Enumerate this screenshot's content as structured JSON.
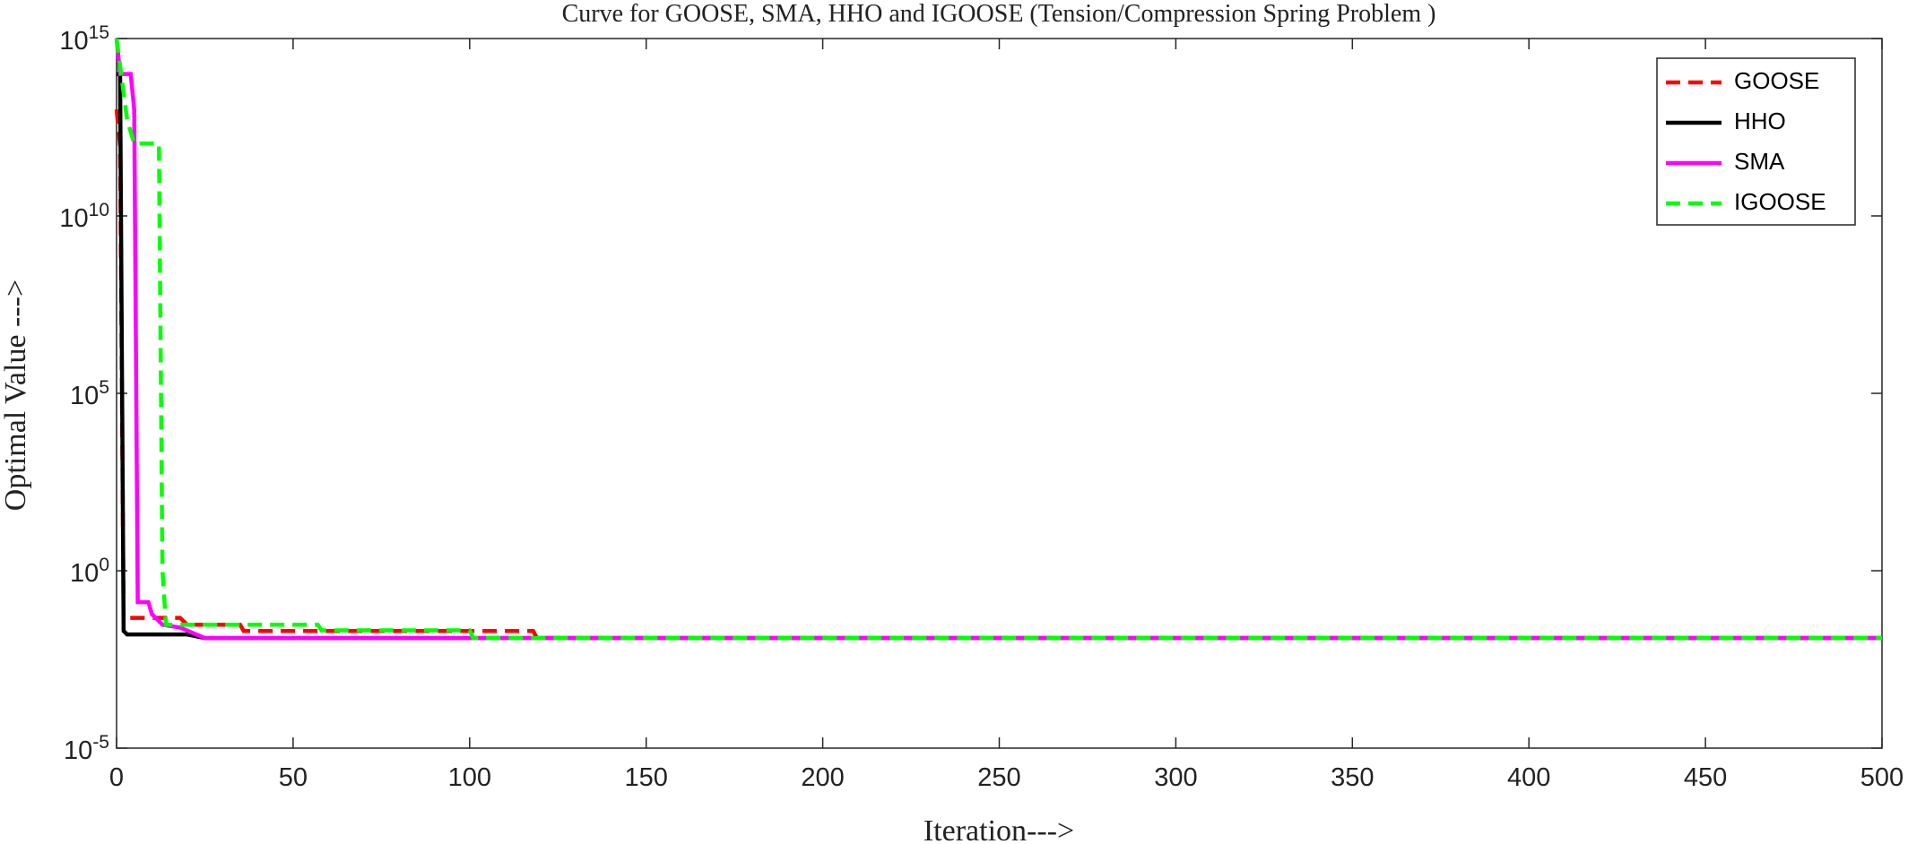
{
  "chart_data": {
    "type": "line",
    "title": "Curve for GOOSE, SMA, HHO and IGOOSE (Tension/Compression Spring Problem )",
    "x_label": "Iteration--->",
    "y_label": "Optimal Value --->",
    "log_scale": true,
    "xlim": [
      0,
      500
    ],
    "xticks": [
      0,
      50,
      100,
      150,
      200,
      250,
      300,
      350,
      400,
      450,
      500
    ],
    "ylim": [
      1e-05,
      1000000000000000
    ],
    "yticks": [
      {
        "value": 1e-05,
        "label": "10^-5"
      },
      {
        "value": 1,
        "label": "10^0"
      },
      {
        "value": 100000,
        "label": "10^5"
      },
      {
        "value": 10000000000,
        "label": "10^10"
      },
      {
        "value": 1000000000000000,
        "label": "10^15"
      }
    ],
    "legend": "top-right",
    "series": [
      {
        "name": "GOOSE",
        "color": "#ff0000",
        "style": "dashed",
        "x": [
          0,
          1,
          2,
          18,
          20,
          35,
          36,
          118,
          119,
          500
        ],
        "values": [
          10000000000000,
          1000000000000,
          0.047,
          0.047,
          0.03,
          0.03,
          0.02,
          0.02,
          0.0127,
          0.0127
        ]
      },
      {
        "name": "HHO",
        "color": "#000000",
        "style": "solid",
        "x": [
          0,
          1,
          2,
          3,
          20,
          25,
          500
        ],
        "values": [
          100000000000000,
          100000000000000,
          0.02,
          0.016,
          0.016,
          0.0127,
          0.0127
        ]
      },
      {
        "name": "SMA",
        "color": "#ff00ff",
        "style": "solid",
        "x": [
          0,
          1,
          4,
          5,
          6,
          9,
          10,
          13,
          18,
          25,
          500
        ],
        "values": [
          1000000000000000,
          100000000000000,
          100000000000000,
          10000000000000,
          0.13,
          0.13,
          0.06,
          0.03,
          0.025,
          0.0127,
          0.0127
        ]
      },
      {
        "name": "IGOOSE",
        "color": "#00ff00",
        "style": "dashed",
        "x": [
          0,
          3,
          5,
          12,
          13,
          14,
          57,
          58,
          100,
          101,
          500
        ],
        "values": [
          1000000000000000,
          5000000000000,
          1100000000000,
          1100000000000,
          1,
          0.03,
          0.03,
          0.021,
          0.021,
          0.0127,
          0.0127
        ]
      }
    ]
  }
}
